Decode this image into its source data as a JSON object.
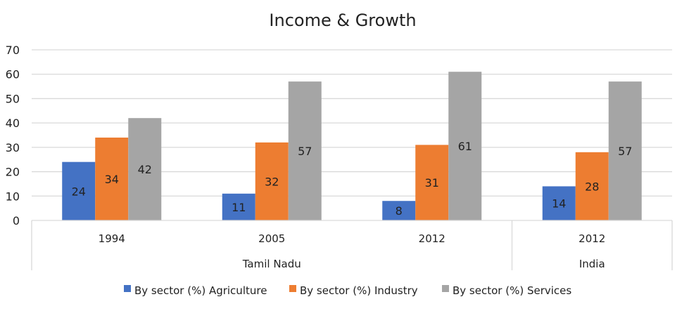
{
  "chart_data": {
    "type": "bar",
    "title": "Income & Growth",
    "categories": [
      "1994",
      "2005",
      "2012",
      "2012"
    ],
    "category_groups": [
      {
        "label": "Tamil Nadu",
        "span": 3
      },
      {
        "label": "India",
        "span": 1
      }
    ],
    "series": [
      {
        "name": "By sector (%) Agriculture",
        "color": "#4472c4",
        "values": [
          24,
          11,
          8,
          14
        ]
      },
      {
        "name": "By sector (%) Industry",
        "color": "#ed7d31",
        "values": [
          34,
          32,
          31,
          28
        ]
      },
      {
        "name": "By sector (%) Services",
        "color": "#a5a5a5",
        "values": [
          42,
          57,
          61,
          57
        ]
      }
    ],
    "ylim": [
      0,
      70
    ],
    "yticks": [
      0,
      10,
      20,
      30,
      40,
      50,
      60,
      70
    ],
    "grid": true,
    "data_labels": true,
    "legend_position": "bottom",
    "xlabel": "",
    "ylabel": ""
  }
}
